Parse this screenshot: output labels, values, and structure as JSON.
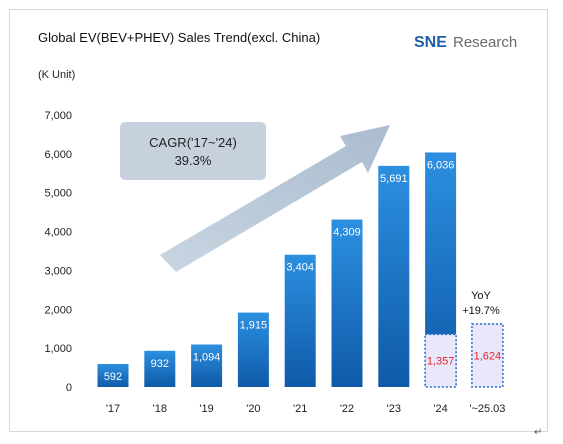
{
  "chart_data": {
    "type": "bar",
    "title": "Global EV(BEV+PHEV) Sales Trend(excl. China)",
    "unit_label": "(K Unit)",
    "categories": [
      "'17",
      "'18",
      "'19",
      "'20",
      "'21",
      "'22",
      "'23",
      "'24",
      "'~25.03"
    ],
    "series": [
      {
        "values": [
          592,
          932,
          1094,
          1915,
          3404,
          4309,
          5691,
          6036,
          null
        ]
      },
      {
        "values": [
          null,
          null,
          null,
          null,
          null,
          null,
          null,
          1357,
          1624
        ]
      }
    ],
    "data_labels": [
      "592",
      "932",
      "1,094",
      "1,915",
      "3,404",
      "4,309",
      "5,691",
      "6,036"
    ],
    "highlight_labels": [
      "1,357",
      "1,624"
    ],
    "ylim": [
      0,
      7000
    ],
    "y_ticks": [
      0,
      1000,
      2000,
      3000,
      4000,
      5000,
      6000,
      7000
    ],
    "y_tick_labels": [
      "0",
      "1,000",
      "2,000",
      "3,000",
      "4,000",
      "5,000",
      "6,000",
      "7,000"
    ],
    "grid": false,
    "annotations": {
      "cagr_title": "CAGR('17~'24)",
      "cagr_value": "39.3%",
      "yoy_title": "YoY",
      "yoy_value": "+19.7%"
    },
    "colors": {
      "bar_top": "#2d8fe0",
      "bar_bottom": "#0e5aa8",
      "highlight_fill": "#e9e8fa",
      "highlight_border": "#2f6fd0",
      "highlight_text": "#e8232a",
      "arrow": "#b3c4d5",
      "cagr_box": "#c7d1dd"
    }
  },
  "logo": {
    "brand": "SNE",
    "suffix": "Research"
  },
  "trailing_mark": "↵"
}
